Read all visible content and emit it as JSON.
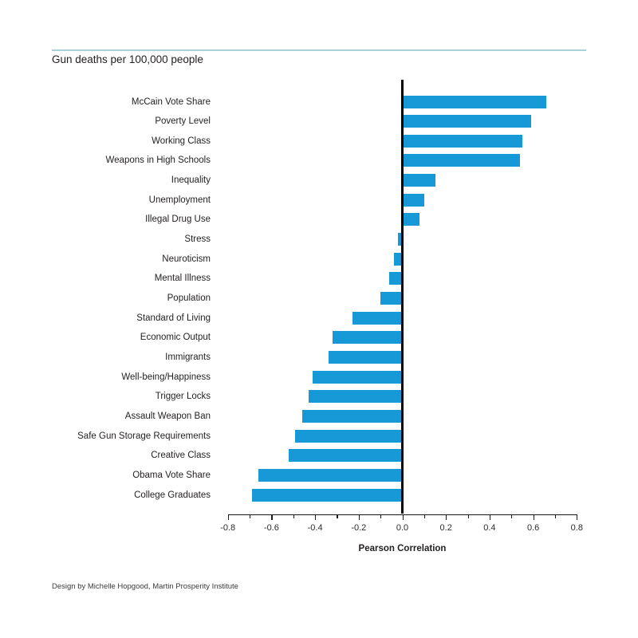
{
  "colors": {
    "bar": "#1699d6",
    "divider": "#a9d3da",
    "axis": "#1a1a1a",
    "text": "#231f20"
  },
  "footer": {
    "credit": "Design by Michelle Hopgood, Martin Prosperity Institute"
  },
  "chart_data": {
    "type": "bar",
    "orientation": "horizontal",
    "title": "Gun deaths per 100,000 people",
    "xlabel": "Pearson Correlation",
    "ylabel": "",
    "xlim": [
      -0.8,
      0.8
    ],
    "baseline": 0,
    "grid": false,
    "legend": false,
    "x_tick_labels": [
      "-0.8",
      "-0.6",
      "-0.4",
      "-0.2",
      "0.0",
      "0.2",
      "0.4",
      "0.6",
      "0.8"
    ],
    "x_ticks_major": [
      -0.8,
      -0.6,
      -0.4,
      -0.2,
      0.0,
      0.2,
      0.4,
      0.6,
      0.8
    ],
    "x_minor_tick_step": 0.1,
    "categories": [
      "McCain Vote Share",
      "Poverty Level",
      "Working Class",
      "Weapons in High Schools",
      "Inequality",
      "Unemployment",
      "Illegal Drug Use",
      "Stress",
      "Neuroticism",
      "Mental Illness",
      "Population",
      "Standard of Living",
      "Economic Output",
      "Immigrants",
      "Well-being/Happiness",
      "Trigger Locks",
      "Assault Weapon Ban",
      "Safe Gun Storage Requirements",
      "Creative Class",
      "Obama Vote Share",
      "College Graduates"
    ],
    "values": [
      0.66,
      0.59,
      0.55,
      0.54,
      0.15,
      0.1,
      0.08,
      -0.02,
      -0.04,
      -0.06,
      -0.1,
      -0.23,
      -0.32,
      -0.34,
      -0.41,
      -0.43,
      -0.46,
      -0.49,
      -0.52,
      -0.66,
      -0.69
    ]
  }
}
